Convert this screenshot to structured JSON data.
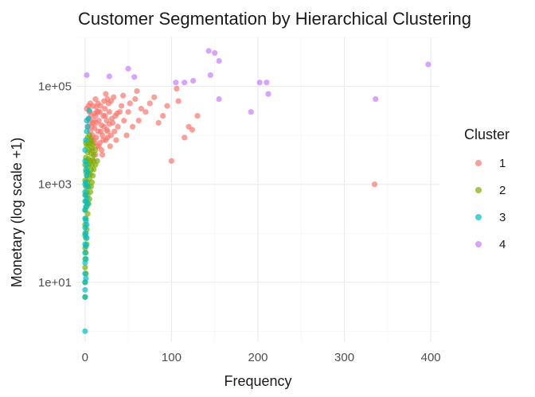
{
  "chart_data": {
    "type": "scatter",
    "title": "Customer Segmentation by Hierarchical Clustering",
    "xlabel": "Frequency",
    "ylabel": "Monetary (log scale +1)",
    "y_scale": "log10",
    "xlim": [
      -10,
      410
    ],
    "ylim": [
      0.6,
      1000000
    ],
    "x_ticks": [
      0,
      100,
      200,
      300,
      400
    ],
    "x_tick_labels": [
      "0",
      "100",
      "200",
      "300",
      "400"
    ],
    "y_ticks": [
      10,
      1000,
      100000
    ],
    "y_tick_labels": [
      "1e+01",
      "1e+03",
      "1e+05"
    ],
    "grid": true,
    "legend": {
      "title": "Cluster",
      "position": "right"
    },
    "series": [
      {
        "name": "1",
        "color": "#F8766D",
        "points": [
          [
            100,
            3000
          ],
          [
            335,
            1000
          ],
          [
            115,
            9000
          ],
          [
            108,
            50000
          ],
          [
            106,
            90000
          ],
          [
            130,
            25000
          ],
          [
            80,
            60000
          ],
          [
            60,
            80000
          ],
          [
            58,
            55000
          ],
          [
            45,
            20000
          ],
          [
            42,
            40000
          ],
          [
            38,
            15000
          ],
          [
            35,
            25000
          ],
          [
            33,
            60000
          ],
          [
            30,
            10000
          ],
          [
            28,
            30000
          ],
          [
            27,
            45000
          ],
          [
            26,
            12000
          ],
          [
            25,
            20000
          ],
          [
            24,
            8000
          ],
          [
            23,
            35000
          ],
          [
            22,
            15000
          ],
          [
            21,
            25000
          ],
          [
            20,
            10000
          ],
          [
            19,
            5000
          ],
          [
            18,
            40000
          ],
          [
            17,
            7000
          ],
          [
            16,
            20000
          ],
          [
            15,
            12000
          ],
          [
            15,
            30000
          ],
          [
            14,
            6000
          ],
          [
            13,
            18000
          ],
          [
            13,
            9000
          ],
          [
            12,
            25000
          ],
          [
            12,
            4000
          ],
          [
            11,
            14000
          ],
          [
            11,
            7000
          ],
          [
            10,
            20000
          ],
          [
            10,
            3000
          ],
          [
            9,
            10000
          ],
          [
            9,
            40000
          ],
          [
            8,
            5000
          ],
          [
            8,
            15000
          ],
          [
            7,
            8000
          ],
          [
            7,
            25000
          ],
          [
            6,
            12000
          ],
          [
            6,
            45000
          ],
          [
            5,
            18000
          ],
          [
            5,
            30000
          ],
          [
            4,
            40000
          ],
          [
            4,
            22000
          ],
          [
            3,
            15000
          ],
          [
            2,
            35000
          ],
          [
            50,
            30000
          ],
          [
            55,
            15000
          ],
          [
            65,
            35000
          ],
          [
            48,
            10000
          ],
          [
            40,
            30000
          ],
          [
            36,
            8000
          ],
          [
            32,
            18000
          ],
          [
            29,
            6000
          ],
          [
            31,
            22000
          ],
          [
            34,
            12000
          ],
          [
            37,
            28000
          ],
          [
            26,
            55000
          ],
          [
            24,
            70000
          ],
          [
            30,
            50000
          ],
          [
            44,
            65000
          ],
          [
            52,
            45000
          ],
          [
            62,
            20000
          ],
          [
            70,
            30000
          ],
          [
            75,
            45000
          ],
          [
            90,
            25000
          ],
          [
            120,
            15000
          ],
          [
            124,
            13000
          ],
          [
            95,
            40000
          ],
          [
            85,
            18000
          ],
          [
            20,
            4000
          ],
          [
            18,
            12000
          ],
          [
            16,
            6000
          ],
          [
            14,
            30000
          ],
          [
            22,
            50000
          ],
          [
            26,
            9000
          ],
          [
            28,
            17000
          ],
          [
            23,
            25000
          ],
          [
            19,
            16000
          ],
          [
            17,
            30000
          ],
          [
            21,
            8000
          ],
          [
            25,
            13000
          ],
          [
            15,
            45000
          ],
          [
            12,
            55000
          ],
          [
            10,
            8000
          ],
          [
            11,
            28000
          ],
          [
            13,
            38000
          ],
          [
            9,
            18000
          ],
          [
            8,
            9000
          ]
        ]
      },
      {
        "name": "2",
        "color": "#7CAE00",
        "points": [
          [
            0,
            50
          ],
          [
            0,
            20
          ],
          [
            0,
            150
          ],
          [
            0,
            300
          ],
          [
            0,
            600
          ],
          [
            0,
            1200
          ],
          [
            0,
            2500
          ],
          [
            0,
            10
          ],
          [
            1,
            80
          ],
          [
            1,
            200
          ],
          [
            1,
            450
          ],
          [
            1,
            900
          ],
          [
            1,
            1800
          ],
          [
            1,
            3500
          ],
          [
            1,
            7000
          ],
          [
            2,
            120
          ],
          [
            2,
            350
          ],
          [
            2,
            700
          ],
          [
            2,
            1500
          ],
          [
            2,
            3000
          ],
          [
            2,
            6000
          ],
          [
            3,
            250
          ],
          [
            3,
            600
          ],
          [
            3,
            1100
          ],
          [
            3,
            2200
          ],
          [
            3,
            4500
          ],
          [
            3,
            9000
          ],
          [
            4,
            400
          ],
          [
            4,
            900
          ],
          [
            4,
            1700
          ],
          [
            4,
            3300
          ],
          [
            4,
            6500
          ],
          [
            5,
            500
          ],
          [
            5,
            1300
          ],
          [
            5,
            2600
          ],
          [
            5,
            5000
          ],
          [
            5,
            10000
          ],
          [
            6,
            700
          ],
          [
            6,
            1600
          ],
          [
            6,
            3000
          ],
          [
            6,
            7000
          ],
          [
            7,
            900
          ],
          [
            7,
            2000
          ],
          [
            7,
            4200
          ],
          [
            7,
            8000
          ],
          [
            8,
            1100
          ],
          [
            8,
            2500
          ],
          [
            8,
            5500
          ],
          [
            9,
            1500
          ],
          [
            9,
            3200
          ],
          [
            9,
            6500
          ],
          [
            10,
            2000
          ],
          [
            10,
            4000
          ],
          [
            12,
            2500
          ],
          [
            12,
            5000
          ],
          [
            14,
            3000
          ],
          [
            0,
            5
          ],
          [
            0,
            30
          ],
          [
            1,
            40
          ],
          [
            2,
            60
          ],
          [
            0,
            100
          ],
          [
            1,
            15
          ]
        ]
      },
      {
        "name": "3",
        "color": "#00BFC4",
        "points": [
          [
            0,
            1
          ],
          [
            0,
            5
          ],
          [
            0,
            7
          ],
          [
            0,
            10
          ],
          [
            0,
            15
          ],
          [
            0,
            25
          ],
          [
            0,
            40
          ],
          [
            0,
            60
          ],
          [
            0,
            90
          ],
          [
            0,
            130
          ],
          [
            0,
            200
          ],
          [
            0,
            300
          ],
          [
            0,
            450
          ],
          [
            0,
            700
          ],
          [
            0,
            1000
          ],
          [
            1,
            12
          ],
          [
            1,
            30
          ],
          [
            1,
            55
          ],
          [
            1,
            100
          ],
          [
            1,
            180
          ],
          [
            1,
            350
          ],
          [
            1,
            600
          ],
          [
            1,
            1100
          ],
          [
            2,
            80
          ],
          [
            2,
            150
          ],
          [
            2,
            500
          ],
          [
            2,
            1500
          ],
          [
            2,
            2500
          ],
          [
            3,
            400
          ],
          [
            3,
            900
          ],
          [
            3,
            1800
          ],
          [
            0,
            3000
          ],
          [
            0,
            5000
          ],
          [
            1,
            8000
          ],
          [
            2,
            12000
          ],
          [
            3,
            15000
          ],
          [
            5,
            32000
          ],
          [
            4,
            22000
          ],
          [
            2,
            20000
          ],
          [
            1,
            2000
          ]
        ]
      },
      {
        "name": "4",
        "color": "#C77CFF",
        "points": [
          [
            2,
            170000
          ],
          [
            28,
            160000
          ],
          [
            50,
            230000
          ],
          [
            57,
            155000
          ],
          [
            105,
            120000
          ],
          [
            115,
            120000
          ],
          [
            125,
            130000
          ],
          [
            145,
            170000
          ],
          [
            143,
            530000
          ],
          [
            150,
            480000
          ],
          [
            155,
            330000
          ],
          [
            155,
            55000
          ],
          [
            192,
            30000
          ],
          [
            202,
            120000
          ],
          [
            210,
            120000
          ],
          [
            212,
            70000
          ],
          [
            336,
            55000
          ],
          [
            397,
            280000
          ]
        ]
      }
    ]
  }
}
